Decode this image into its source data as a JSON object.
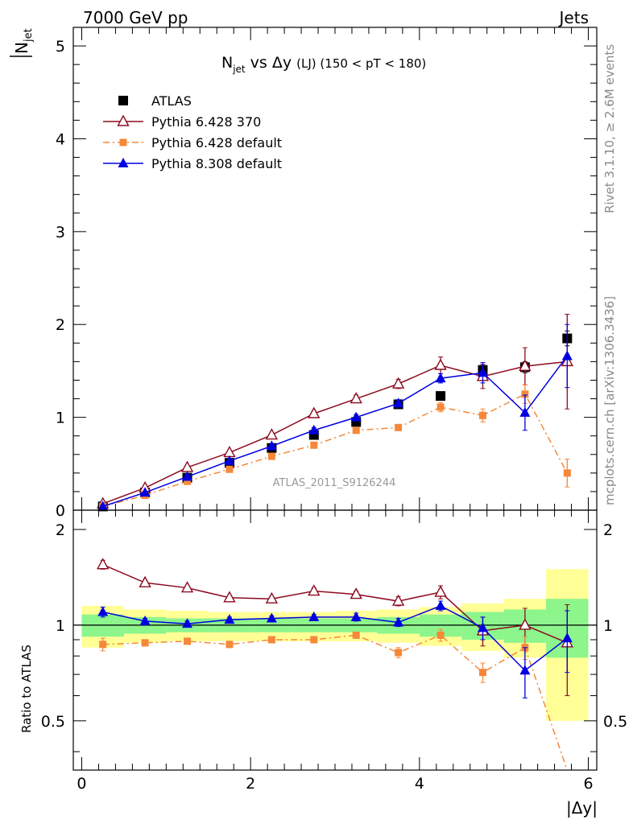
{
  "header": {
    "left": "7000 GeV pp",
    "right": "Jets",
    "side_top": "Rivet 3.1.10, ≥ 2.6M events",
    "side_bottom": "mcplots.cern.ch [arXiv:1306.3436]",
    "watermark": "ATLAS_2011_S9126244"
  },
  "chart_data": [
    {
      "type": "scatter",
      "title_main": "N",
      "title_sub": "jet",
      "title_vs": " vs Δy ",
      "title_lj": "(LJ)",
      "title_range": " (150 < pT < 180)",
      "ylabel_main": "N",
      "ylabel_sub": "jet",
      "xlim": [
        -0.1,
        6.1
      ],
      "ylim": [
        0,
        5.2
      ],
      "yticks": [
        "0",
        "1",
        "2",
        "3",
        "4",
        "5"
      ],
      "x": [
        0.25,
        0.75,
        1.25,
        1.75,
        2.25,
        2.75,
        3.25,
        3.75,
        4.25,
        4.75,
        5.25,
        5.75
      ],
      "series": [
        {
          "name": "ATLAS",
          "color": "#000000",
          "marker": "square",
          "values": [
            0.04,
            0.19,
            0.35,
            0.51,
            0.67,
            0.81,
            0.95,
            1.14,
            1.23,
            1.51,
            1.54,
            1.85
          ],
          "errors": [
            0.01,
            0.01,
            0.02,
            0.02,
            0.02,
            0.02,
            0.03,
            0.03,
            0.03,
            0.06,
            0.06,
            0.08
          ]
        },
        {
          "name": "Pythia 6.428 370",
          "color": "#8b0a1e",
          "marker": "triangle-open",
          "line": "solid",
          "values": [
            0.07,
            0.24,
            0.46,
            0.62,
            0.81,
            1.04,
            1.2,
            1.36,
            1.56,
            1.44,
            1.55,
            1.6
          ],
          "errors": [
            0.01,
            0.01,
            0.02,
            0.02,
            0.02,
            0.03,
            0.04,
            0.05,
            0.09,
            0.13,
            0.2,
            0.51
          ]
        },
        {
          "name": "Pythia 6.428 default",
          "color": "#f5883a",
          "marker": "square-small",
          "line": "dashdot",
          "values": [
            0.04,
            0.16,
            0.31,
            0.44,
            0.58,
            0.7,
            0.86,
            0.89,
            1.11,
            1.02,
            1.25,
            0.4
          ],
          "errors": [
            0.01,
            0.01,
            0.02,
            0.02,
            0.02,
            0.02,
            0.03,
            0.03,
            0.05,
            0.07,
            0.1,
            0.15
          ]
        },
        {
          "name": "Pythia 8.308 default",
          "color": "#0000e0",
          "marker": "triangle",
          "line": "solid",
          "values": [
            0.04,
            0.19,
            0.36,
            0.53,
            0.69,
            0.86,
            1.0,
            1.15,
            1.42,
            1.48,
            1.05,
            1.66
          ],
          "errors": [
            0.01,
            0.01,
            0.02,
            0.02,
            0.02,
            0.03,
            0.03,
            0.04,
            0.05,
            0.11,
            0.19,
            0.34
          ]
        }
      ],
      "legend": [
        "ATLAS",
        "Pythia 6.428 370",
        "Pythia 6.428 default",
        "Pythia 8.308 default"
      ]
    },
    {
      "type": "scatter",
      "ylabel": "Ratio to ATLAS",
      "xlabel": "|Δy|",
      "xlim": [
        -0.1,
        6.1
      ],
      "ylim": [
        0.35,
        2.3
      ],
      "yticks": [
        "0.5",
        "1",
        "2"
      ],
      "xticks": [
        "0",
        "2",
        "4",
        "6"
      ],
      "band_inner": [
        [
          0.92,
          1.08
        ],
        [
          0.94,
          1.06
        ],
        [
          0.95,
          1.05
        ],
        [
          0.95,
          1.05
        ],
        [
          0.95,
          1.05
        ],
        [
          0.95,
          1.05
        ],
        [
          0.95,
          1.05
        ],
        [
          0.94,
          1.06
        ],
        [
          0.92,
          1.08
        ],
        [
          0.9,
          1.1
        ],
        [
          0.88,
          1.12
        ],
        [
          0.79,
          1.21
        ]
      ],
      "band_outer": [
        [
          0.85,
          1.15
        ],
        [
          0.88,
          1.12
        ],
        [
          0.89,
          1.11
        ],
        [
          0.89,
          1.1
        ],
        [
          0.89,
          1.1
        ],
        [
          0.89,
          1.1
        ],
        [
          0.89,
          1.11
        ],
        [
          0.88,
          1.12
        ],
        [
          0.86,
          1.14
        ],
        [
          0.83,
          1.17
        ],
        [
          0.79,
          1.21
        ],
        [
          0.5,
          1.5
        ]
      ],
      "series": [
        {
          "name": "Pythia 6.428 370",
          "color": "#8b0a1e",
          "values": [
            1.55,
            1.36,
            1.31,
            1.22,
            1.21,
            1.28,
            1.25,
            1.19,
            1.27,
            0.96,
            1.0,
            0.88
          ],
          "errors": [
            0.05,
            0.02,
            0.02,
            0.02,
            0.02,
            0.03,
            0.03,
            0.04,
            0.06,
            0.1,
            0.13,
            0.28
          ]
        },
        {
          "name": "Pythia 6.428 default",
          "color": "#f5883a",
          "values": [
            0.87,
            0.88,
            0.89,
            0.87,
            0.9,
            0.9,
            0.93,
            0.82,
            0.93,
            0.71,
            0.85,
            0.26
          ],
          "errors": [
            0.04,
            0.02,
            0.02,
            0.02,
            0.02,
            0.02,
            0.02,
            0.03,
            0.04,
            0.05,
            0.07,
            0.08
          ]
        },
        {
          "name": "Pythia 8.308 default",
          "color": "#0000e0",
          "values": [
            1.1,
            1.03,
            1.01,
            1.04,
            1.05,
            1.06,
            1.06,
            1.02,
            1.15,
            0.98,
            0.72,
            0.91
          ],
          "errors": [
            0.04,
            0.02,
            0.02,
            0.02,
            0.02,
            0.02,
            0.03,
            0.03,
            0.04,
            0.08,
            0.13,
            0.2
          ]
        }
      ]
    }
  ]
}
